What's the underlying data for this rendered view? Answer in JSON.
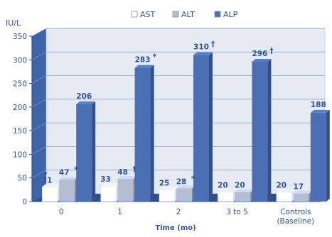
{
  "chart_data": {
    "type": "bar",
    "ylabel": "IU/L",
    "xlabel": "Time (mo)",
    "ylim": [
      0,
      350
    ],
    "yticks": [
      0,
      50,
      100,
      150,
      200,
      250,
      300,
      350
    ],
    "grid": true,
    "legend_position": "top-center",
    "categories": [
      [
        "0"
      ],
      [
        "1"
      ],
      [
        "2"
      ],
      [
        "3 to 5"
      ],
      [
        "Controls",
        "(Baseline)"
      ]
    ],
    "series": [
      {
        "name": "AST",
        "values": [
          31,
          33,
          25,
          20,
          20
        ],
        "color": "#ffffff",
        "labels": [
          "31",
          "33",
          "25",
          "20",
          "20"
        ]
      },
      {
        "name": "ALT",
        "values": [
          47,
          48,
          28,
          20,
          17
        ],
        "color": "#b4bdd2",
        "labels": [
          "47",
          "48",
          "28",
          "20",
          "17"
        ]
      },
      {
        "name": "ALP",
        "values": [
          206,
          283,
          310,
          296,
          188
        ],
        "color": "#4a6fb5",
        "labels": [
          "206",
          "283",
          "310",
          "296",
          "188"
        ]
      }
    ],
    "annotations": [
      {
        "category": 0,
        "series": "AST",
        "mark": "†"
      },
      {
        "category": 0,
        "series": "ALT",
        "mark": "*"
      },
      {
        "category": 1,
        "series": "ALT",
        "mark": "†"
      },
      {
        "category": 1,
        "series": "ALP",
        "mark": "*"
      },
      {
        "category": 2,
        "series": "ALT",
        "mark": "*"
      },
      {
        "category": 2,
        "series": "ALP",
        "mark": "†"
      },
      {
        "category": 3,
        "series": "ALP",
        "mark": "†"
      }
    ],
    "colors": {
      "plot_bg": "#e6eaf2",
      "wall": "#3f63a8",
      "floor": "#2f4f8f",
      "text": "#2f5597"
    }
  }
}
